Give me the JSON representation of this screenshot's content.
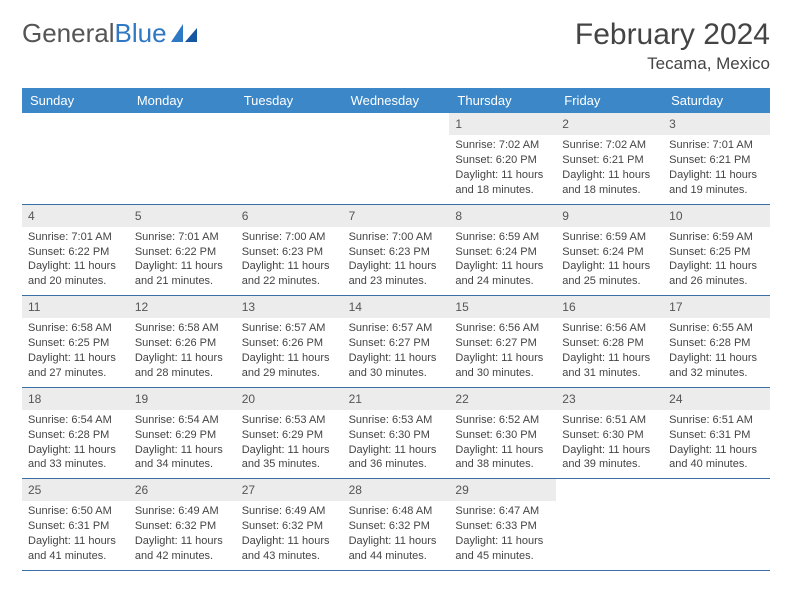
{
  "logo": {
    "word1": "General",
    "word2": "Blue"
  },
  "title": "February 2024",
  "location": "Tecama, Mexico",
  "colors": {
    "header_bg": "#3b87c8",
    "header_text": "#ffffff",
    "date_band_bg": "#ececec",
    "week_border": "#3b6fa3",
    "logo_gray": "#555555",
    "logo_blue": "#2f78c4"
  },
  "day_names": [
    "Sunday",
    "Monday",
    "Tuesday",
    "Wednesday",
    "Thursday",
    "Friday",
    "Saturday"
  ],
  "weeks": [
    [
      {
        "date": "",
        "lines": []
      },
      {
        "date": "",
        "lines": []
      },
      {
        "date": "",
        "lines": []
      },
      {
        "date": "",
        "lines": []
      },
      {
        "date": "1",
        "lines": [
          "Sunrise: 7:02 AM",
          "Sunset: 6:20 PM",
          "Daylight: 11 hours and 18 minutes."
        ]
      },
      {
        "date": "2",
        "lines": [
          "Sunrise: 7:02 AM",
          "Sunset: 6:21 PM",
          "Daylight: 11 hours and 18 minutes."
        ]
      },
      {
        "date": "3",
        "lines": [
          "Sunrise: 7:01 AM",
          "Sunset: 6:21 PM",
          "Daylight: 11 hours and 19 minutes."
        ]
      }
    ],
    [
      {
        "date": "4",
        "lines": [
          "Sunrise: 7:01 AM",
          "Sunset: 6:22 PM",
          "Daylight: 11 hours and 20 minutes."
        ]
      },
      {
        "date": "5",
        "lines": [
          "Sunrise: 7:01 AM",
          "Sunset: 6:22 PM",
          "Daylight: 11 hours and 21 minutes."
        ]
      },
      {
        "date": "6",
        "lines": [
          "Sunrise: 7:00 AM",
          "Sunset: 6:23 PM",
          "Daylight: 11 hours and 22 minutes."
        ]
      },
      {
        "date": "7",
        "lines": [
          "Sunrise: 7:00 AM",
          "Sunset: 6:23 PM",
          "Daylight: 11 hours and 23 minutes."
        ]
      },
      {
        "date": "8",
        "lines": [
          "Sunrise: 6:59 AM",
          "Sunset: 6:24 PM",
          "Daylight: 11 hours and 24 minutes."
        ]
      },
      {
        "date": "9",
        "lines": [
          "Sunrise: 6:59 AM",
          "Sunset: 6:24 PM",
          "Daylight: 11 hours and 25 minutes."
        ]
      },
      {
        "date": "10",
        "lines": [
          "Sunrise: 6:59 AM",
          "Sunset: 6:25 PM",
          "Daylight: 11 hours and 26 minutes."
        ]
      }
    ],
    [
      {
        "date": "11",
        "lines": [
          "Sunrise: 6:58 AM",
          "Sunset: 6:25 PM",
          "Daylight: 11 hours and 27 minutes."
        ]
      },
      {
        "date": "12",
        "lines": [
          "Sunrise: 6:58 AM",
          "Sunset: 6:26 PM",
          "Daylight: 11 hours and 28 minutes."
        ]
      },
      {
        "date": "13",
        "lines": [
          "Sunrise: 6:57 AM",
          "Sunset: 6:26 PM",
          "Daylight: 11 hours and 29 minutes."
        ]
      },
      {
        "date": "14",
        "lines": [
          "Sunrise: 6:57 AM",
          "Sunset: 6:27 PM",
          "Daylight: 11 hours and 30 minutes."
        ]
      },
      {
        "date": "15",
        "lines": [
          "Sunrise: 6:56 AM",
          "Sunset: 6:27 PM",
          "Daylight: 11 hours and 30 minutes."
        ]
      },
      {
        "date": "16",
        "lines": [
          "Sunrise: 6:56 AM",
          "Sunset: 6:28 PM",
          "Daylight: 11 hours and 31 minutes."
        ]
      },
      {
        "date": "17",
        "lines": [
          "Sunrise: 6:55 AM",
          "Sunset: 6:28 PM",
          "Daylight: 11 hours and 32 minutes."
        ]
      }
    ],
    [
      {
        "date": "18",
        "lines": [
          "Sunrise: 6:54 AM",
          "Sunset: 6:28 PM",
          "Daylight: 11 hours and 33 minutes."
        ]
      },
      {
        "date": "19",
        "lines": [
          "Sunrise: 6:54 AM",
          "Sunset: 6:29 PM",
          "Daylight: 11 hours and 34 minutes."
        ]
      },
      {
        "date": "20",
        "lines": [
          "Sunrise: 6:53 AM",
          "Sunset: 6:29 PM",
          "Daylight: 11 hours and 35 minutes."
        ]
      },
      {
        "date": "21",
        "lines": [
          "Sunrise: 6:53 AM",
          "Sunset: 6:30 PM",
          "Daylight: 11 hours and 36 minutes."
        ]
      },
      {
        "date": "22",
        "lines": [
          "Sunrise: 6:52 AM",
          "Sunset: 6:30 PM",
          "Daylight: 11 hours and 38 minutes."
        ]
      },
      {
        "date": "23",
        "lines": [
          "Sunrise: 6:51 AM",
          "Sunset: 6:30 PM",
          "Daylight: 11 hours and 39 minutes."
        ]
      },
      {
        "date": "24",
        "lines": [
          "Sunrise: 6:51 AM",
          "Sunset: 6:31 PM",
          "Daylight: 11 hours and 40 minutes."
        ]
      }
    ],
    [
      {
        "date": "25",
        "lines": [
          "Sunrise: 6:50 AM",
          "Sunset: 6:31 PM",
          "Daylight: 11 hours and 41 minutes."
        ]
      },
      {
        "date": "26",
        "lines": [
          "Sunrise: 6:49 AM",
          "Sunset: 6:32 PM",
          "Daylight: 11 hours and 42 minutes."
        ]
      },
      {
        "date": "27",
        "lines": [
          "Sunrise: 6:49 AM",
          "Sunset: 6:32 PM",
          "Daylight: 11 hours and 43 minutes."
        ]
      },
      {
        "date": "28",
        "lines": [
          "Sunrise: 6:48 AM",
          "Sunset: 6:32 PM",
          "Daylight: 11 hours and 44 minutes."
        ]
      },
      {
        "date": "29",
        "lines": [
          "Sunrise: 6:47 AM",
          "Sunset: 6:33 PM",
          "Daylight: 11 hours and 45 minutes."
        ]
      },
      {
        "date": "",
        "lines": []
      },
      {
        "date": "",
        "lines": []
      }
    ]
  ]
}
